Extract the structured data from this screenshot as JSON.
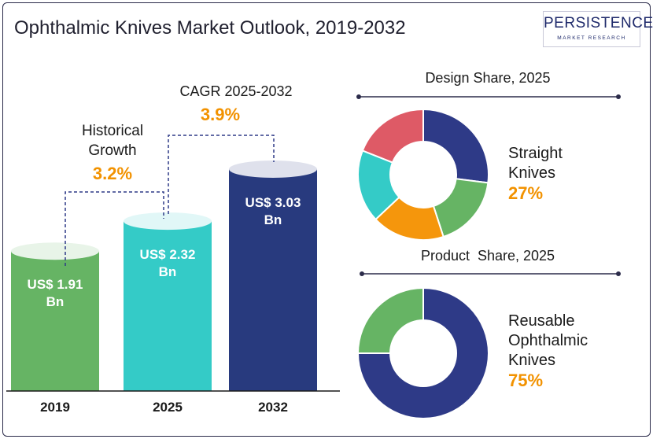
{
  "title": "Ophthalmic Knives Market Outlook, 2019-2032",
  "logo": {
    "main": "PERSISTENCE",
    "sub": "MARKET RESEARCH"
  },
  "annotations": {
    "historical_line1": "Historical",
    "historical_line2": "Growth",
    "historical_value": "3.2%",
    "cagr_label": "CAGR 2025-2032",
    "cagr_value": "3.9%"
  },
  "chart_data": [
    {
      "type": "bar",
      "categories": [
        "2019",
        "2025",
        "2032"
      ],
      "values": [
        1.91,
        2.32,
        3.03
      ],
      "value_labels_line1": [
        "US$ 1.91",
        "US$ 2.32",
        "US$ 3.03"
      ],
      "value_labels_line2": [
        "Bn",
        "Bn",
        "Bn"
      ],
      "colors": [
        "#66b464",
        "#34cbc7",
        "#283a7e"
      ],
      "unit": "US$ Bn"
    },
    {
      "type": "pie",
      "title": "Design Share, 2025",
      "callout_label_lines": [
        "Straight",
        "Knives"
      ],
      "callout_value": "27%",
      "slices": [
        {
          "value": 27,
          "color": "#2e3a87"
        },
        {
          "value": 18,
          "color": "#66b464"
        },
        {
          "value": 18,
          "color": "#f5960c"
        },
        {
          "value": 18,
          "color": "#34cbc7"
        },
        {
          "value": 19,
          "color": "#de5a66"
        }
      ]
    },
    {
      "type": "pie",
      "title": "Product  Share, 2025",
      "callout_label_lines": [
        "Reusable",
        "Ophthalmic",
        "Knives"
      ],
      "callout_value": "75%",
      "slices": [
        {
          "value": 75,
          "color": "#2e3a87"
        },
        {
          "value": 25,
          "color": "#66b464"
        }
      ]
    }
  ]
}
